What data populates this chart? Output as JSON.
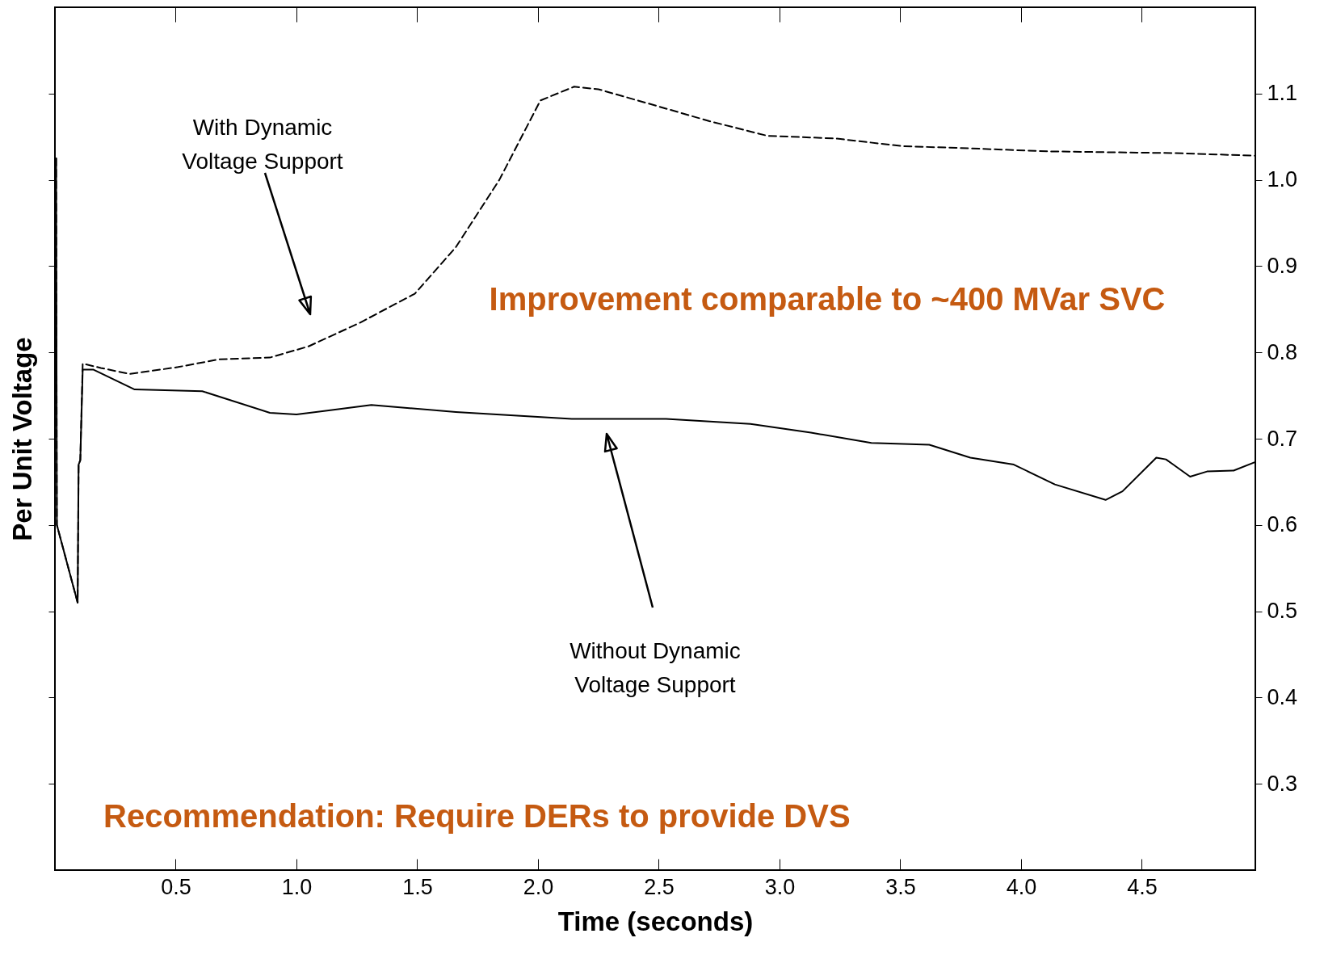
{
  "chart_data": {
    "type": "line",
    "xlabel": "Time (seconds)",
    "ylabel": "Per Unit Voltage",
    "xlim": [
      0,
      4.97
    ],
    "ylim": [
      0.2,
      1.2
    ],
    "xticks": [
      0.5,
      {
        "value": 1,
        "label": "1.0"
      },
      1.5,
      {
        "value": 2,
        "label": "2.0"
      },
      2.5,
      {
        "value": 3,
        "label": "3.0"
      },
      3.5,
      {
        "value": 4,
        "label": "4.0"
      },
      4.5
    ],
    "yticks": [
      0.3,
      0.4,
      0.5,
      0.6,
      0.7,
      0.8,
      0.9,
      {
        "value": 1,
        "label": "1.0"
      },
      1.1
    ],
    "series": [
      {
        "color": "#000000",
        "line_style": "solid",
        "x": [
          0.005,
          0.008,
          0.094,
          0.098,
          0.105,
          0.115,
          0.16,
          0.33,
          0.61,
          0.89,
          1.0,
          1.31,
          1.66,
          2.14,
          2.53,
          2.88,
          3.13,
          3.38,
          3.62,
          3.79,
          3.97,
          4.14,
          4.35,
          4.42,
          4.56,
          4.6,
          4.63,
          4.7,
          4.77,
          4.88,
          4.97
        ],
        "values": [
          1.025,
          0.6,
          0.51,
          0.67,
          0.675,
          0.78,
          0.78,
          0.757,
          0.755,
          0.73,
          0.728,
          0.739,
          0.731,
          0.723,
          0.723,
          0.717,
          0.707,
          0.695,
          0.693,
          0.678,
          0.67,
          0.647,
          0.629,
          0.639,
          0.678,
          0.676,
          0.67,
          0.656,
          0.662,
          0.663,
          0.673
        ]
      },
      {
        "color": "#000000",
        "line_style": "dashed",
        "x": [
          0.005,
          0.008,
          0.094,
          0.098,
          0.105,
          0.115,
          0.19,
          0.31,
          0.51,
          0.68,
          0.89,
          1.05,
          1.26,
          1.49,
          1.66,
          1.84,
          2.01,
          2.15,
          2.25,
          2.5,
          2.71,
          2.95,
          3.23,
          3.51,
          3.74,
          4.11,
          4.63,
          4.97
        ],
        "values": [
          1.025,
          0.6,
          0.51,
          0.67,
          0.675,
          0.787,
          0.782,
          0.775,
          0.783,
          0.792,
          0.794,
          0.807,
          0.834,
          0.868,
          0.922,
          1.0,
          1.092,
          1.108,
          1.105,
          1.085,
          1.068,
          1.051,
          1.048,
          1.039,
          1.037,
          1.033,
          1.031,
          1.028
        ]
      }
    ],
    "annotations": [
      "With Dynamic Voltage Support",
      "Without Dynamic Voltage Support",
      "Improvement comparable to ~400 MVar SVC",
      "Recommendation: Require DERs to provide DVS"
    ]
  }
}
